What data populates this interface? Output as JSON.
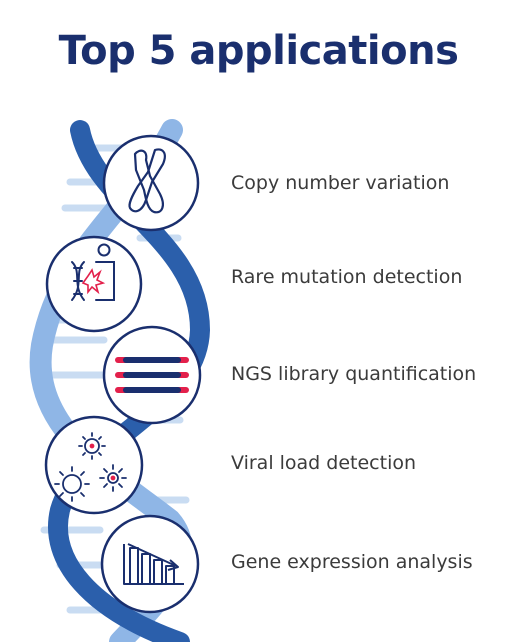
{
  "title": "Top 5 applications",
  "colors": {
    "title": "#1a2f6e",
    "helix_dark": "#2b5fab",
    "helix_light": "#8fb6e6",
    "rung": "#c9dcf2",
    "icon_line": "#1a2f6e",
    "accent": "#e3204b",
    "text": "#3b3b3b"
  },
  "applications": [
    {
      "label": "Copy number variation",
      "icon": "chromosome-icon"
    },
    {
      "label": "Rare mutation detection",
      "icon": "mutation-person-icon"
    },
    {
      "label": "NGS library quantification",
      "icon": "library-strands-icon"
    },
    {
      "label": "Viral load detection",
      "icon": "virus-icon"
    },
    {
      "label": "Gene expression analysis",
      "icon": "expression-chart-icon"
    }
  ]
}
